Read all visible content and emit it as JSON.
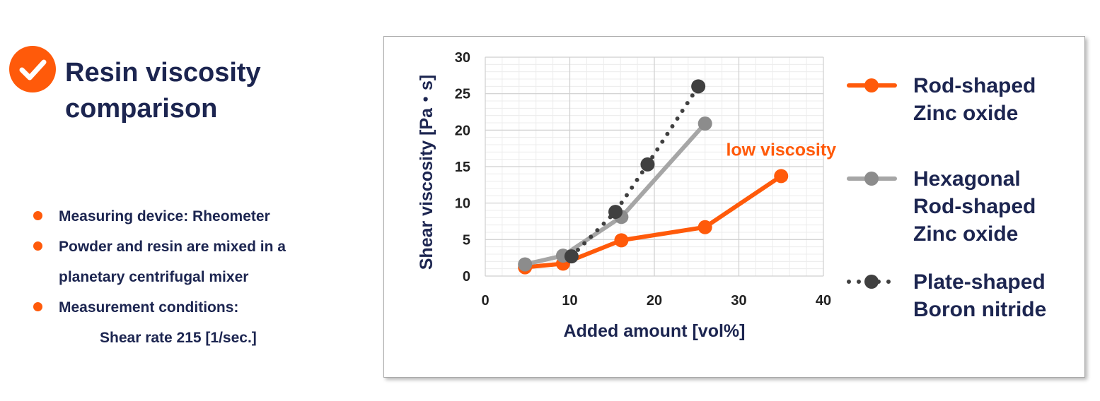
{
  "header": {
    "icon": "check-icon",
    "accent_color": "#ff5a0a",
    "title_lines": [
      "Resin viscosity",
      "comparison"
    ]
  },
  "notes": [
    {
      "lines": [
        "Measuring device:  Rheometer"
      ]
    },
    {
      "lines": [
        "Powder and resin are mixed in a",
        "planetary centrifugal mixer"
      ]
    },
    {
      "lines": [
        "Measurement conditions:",
        "Shear rate 215 [1/sec.]"
      ]
    }
  ],
  "chart_data": {
    "type": "line",
    "xlabel": "Added amount [vol%]",
    "ylabel": "Shear viscosity  [Pa・s]",
    "xlim": [
      0,
      40
    ],
    "ylim": [
      0,
      30
    ],
    "x_ticks": [
      0,
      10,
      20,
      30,
      40
    ],
    "y_ticks": [
      0,
      5,
      10,
      15,
      20,
      25,
      30
    ],
    "grid": true,
    "legend_position": "right",
    "annotations": [
      {
        "text": "low viscosity",
        "x": 35,
        "y": 16.5
      }
    ],
    "series": [
      {
        "name": "Rod-shaped Zinc oxide",
        "legend_lines": [
          "Rod-shaped",
          "Zinc oxide"
        ],
        "color": "#ff5a0a",
        "style": "solid",
        "x": [
          4.7,
          9.2,
          16.1,
          26.0,
          35.0
        ],
        "y": [
          1.2,
          1.7,
          4.9,
          6.7,
          13.7
        ]
      },
      {
        "name": "Hexagonal Rod-shaped Zinc oxide",
        "legend_lines": [
          "Hexagonal",
          "Rod-shaped",
          "Zinc oxide"
        ],
        "color": "#a6a6a6",
        "marker_color": "#8c8c8c",
        "style": "solid",
        "x": [
          4.7,
          9.2,
          16.1,
          26.0
        ],
        "y": [
          1.6,
          2.8,
          8.1,
          20.9
        ]
      },
      {
        "name": "Plate-shaped Boron nitride",
        "legend_lines": [
          "Plate-shaped",
          "Boron nitride"
        ],
        "color": "#404040",
        "style": "dotted",
        "x": [
          10.2,
          15.4,
          19.2,
          25.2
        ],
        "y": [
          2.7,
          8.8,
          15.3,
          26.0
        ]
      }
    ]
  }
}
